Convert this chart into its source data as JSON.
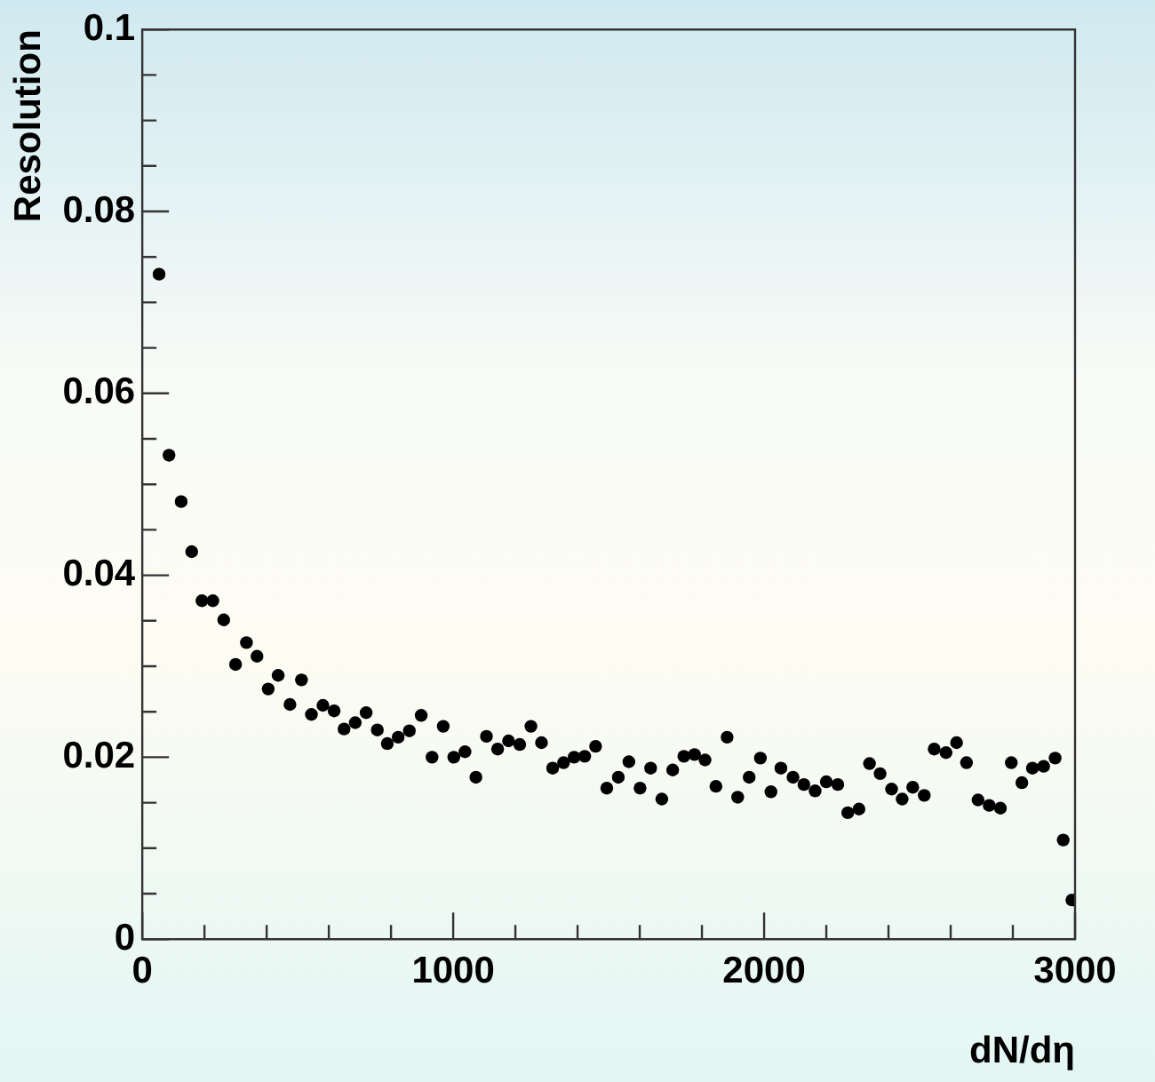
{
  "chart_data": {
    "type": "scatter",
    "xlabel": "dN/dη",
    "ylabel": "Resolution",
    "xlim": [
      0,
      3000
    ],
    "xticks": [
      0,
      {
        "value": 200,
        "label": null
      },
      {
        "value": 400,
        "label": null
      },
      {
        "value": 600,
        "label": null
      },
      {
        "value": 800,
        "label": null
      },
      1000,
      {
        "value": 1200,
        "label": null
      },
      {
        "value": 1400,
        "label": null
      },
      {
        "value": 1600,
        "label": null
      },
      {
        "value": 1800,
        "label": null
      },
      2000,
      {
        "value": 2200,
        "label": null
      },
      {
        "value": 2400,
        "label": null
      },
      {
        "value": 2600,
        "label": null
      },
      {
        "value": 2800,
        "label": null
      },
      3000
    ],
    "ylim": [
      0,
      0.1
    ],
    "yticks": [
      0,
      {
        "value": 0.005,
        "label": null
      },
      {
        "value": 0.01,
        "label": null
      },
      {
        "value": 0.015,
        "label": null
      },
      0.02,
      {
        "value": 0.025,
        "label": null
      },
      {
        "value": 0.03,
        "label": null
      },
      {
        "value": 0.035,
        "label": null
      },
      0.04,
      {
        "value": 0.045,
        "label": null
      },
      {
        "value": 0.05,
        "label": null
      },
      {
        "value": 0.055,
        "label": null
      },
      0.06,
      {
        "value": 0.065,
        "label": null
      },
      {
        "value": 0.07,
        "label": null
      },
      {
        "value": 0.075,
        "label": null
      },
      0.08,
      {
        "value": 0.085,
        "label": null
      },
      {
        "value": 0.09,
        "label": null
      },
      {
        "value": 0.095,
        "label": null
      },
      0.1
    ],
    "marker": "circle",
    "grid": false,
    "legend": false,
    "series": [
      {
        "color": "#000000",
        "x": [
          54,
          86,
          125,
          159,
          192,
          227,
          262,
          300,
          335,
          369,
          405,
          437,
          475,
          512,
          544,
          581,
          617,
          649,
          685,
          720,
          756,
          788,
          823,
          859,
          897,
          932,
          968,
          1002,
          1038,
          1073,
          1107,
          1143,
          1178,
          1214,
          1250,
          1284,
          1320,
          1355,
          1389,
          1423,
          1458,
          1494,
          1531,
          1565,
          1601,
          1635,
          1671,
          1706,
          1742,
          1776,
          1810,
          1845,
          1881,
          1915,
          1952,
          1988,
          2022,
          2054,
          2093,
          2128,
          2164,
          2200,
          2237,
          2269,
          2305,
          2339,
          2373,
          2410,
          2444,
          2478,
          2515,
          2547,
          2585,
          2619,
          2651,
          2688,
          2724,
          2760,
          2795,
          2829,
          2863,
          2899,
          2936,
          2962,
          2990
        ],
        "values": [
          0.0731,
          0.0532,
          0.0481,
          0.0426,
          0.0372,
          0.0372,
          0.0351,
          0.0302,
          0.0326,
          0.0311,
          0.0275,
          0.029,
          0.0258,
          0.0285,
          0.0247,
          0.0257,
          0.0251,
          0.0231,
          0.0238,
          0.0249,
          0.023,
          0.0215,
          0.0222,
          0.0229,
          0.0246,
          0.02,
          0.0234,
          0.02,
          0.0206,
          0.0178,
          0.0223,
          0.0209,
          0.0218,
          0.0214,
          0.0234,
          0.0216,
          0.0188,
          0.0194,
          0.02,
          0.0201,
          0.0212,
          0.0166,
          0.0178,
          0.0195,
          0.0166,
          0.0188,
          0.0154,
          0.0186,
          0.0201,
          0.0203,
          0.0197,
          0.0168,
          0.0222,
          0.0156,
          0.0178,
          0.0199,
          0.0162,
          0.0188,
          0.0178,
          0.017,
          0.0163,
          0.0173,
          0.017,
          0.0139,
          0.0143,
          0.0193,
          0.0182,
          0.0165,
          0.0154,
          0.0167,
          0.0158,
          0.0209,
          0.0205,
          0.0216,
          0.0194,
          0.0153,
          0.0147,
          0.0144,
          0.0194,
          0.0172,
          0.0188,
          0.019,
          0.0199,
          0.0109,
          0.0043
        ]
      }
    ]
  }
}
